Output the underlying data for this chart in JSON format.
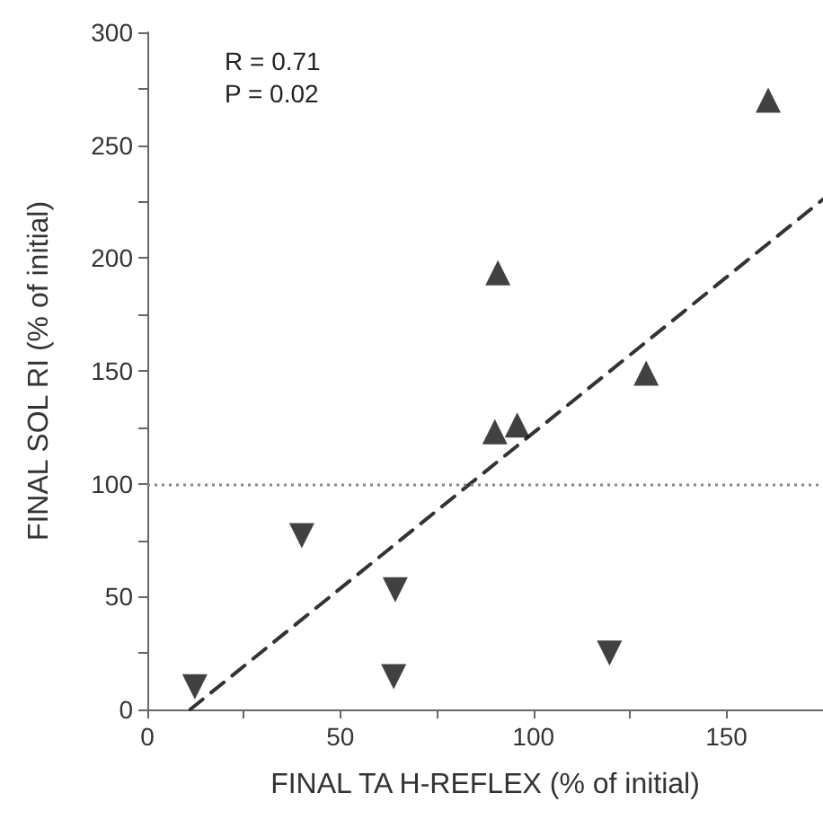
{
  "chart_data": {
    "type": "scatter",
    "xlabel": "FINAL TA H-REFLEX (% of initial)",
    "ylabel": "FINAL SOL RI (% of initial)",
    "annotations": [
      "R = 0.71",
      "P = 0.02"
    ],
    "xlim": [
      0,
      175
    ],
    "xticks": [
      0,
      {
        "value": 25,
        "label": null
      },
      50,
      {
        "value": 75,
        "label": null
      },
      100,
      {
        "value": 125,
        "label": null
      },
      150
    ],
    "ylim": [
      0,
      300
    ],
    "yticks": [
      0,
      {
        "value": 25,
        "label": null
      },
      50,
      {
        "value": 75,
        "label": null
      },
      100,
      {
        "value": 125,
        "label": null
      },
      150,
      {
        "value": 175,
        "label": null
      },
      200,
      {
        "value": 225,
        "label": null
      },
      250,
      {
        "value": 275,
        "label": null
      },
      300
    ],
    "grid": false,
    "legend": false,
    "series": [
      {
        "color": "#111111",
        "marker": "triangle",
        "x": [
          160.8,
          90.8,
          129.2,
          90,
          95.8
        ],
        "values": [
          270,
          193.5,
          149,
          123,
          126
        ]
      },
      {
        "color": "#111111",
        "marker": "triangle-down",
        "x": [
          12.3,
          40,
          64.2,
          63.8,
          119.7
        ],
        "values": [
          10,
          77,
          53,
          14.5,
          25
        ]
      },
      {
        "type": "line",
        "color": "#333333",
        "marker": "none",
        "line_style": "dashed",
        "x": [
          11.1,
          175
        ],
        "values": [
          0,
          226
        ]
      }
    ],
    "ref_lines": [
      {
        "axis": "y",
        "value": 100,
        "color": "#888888",
        "line_style": "dotted"
      }
    ]
  }
}
